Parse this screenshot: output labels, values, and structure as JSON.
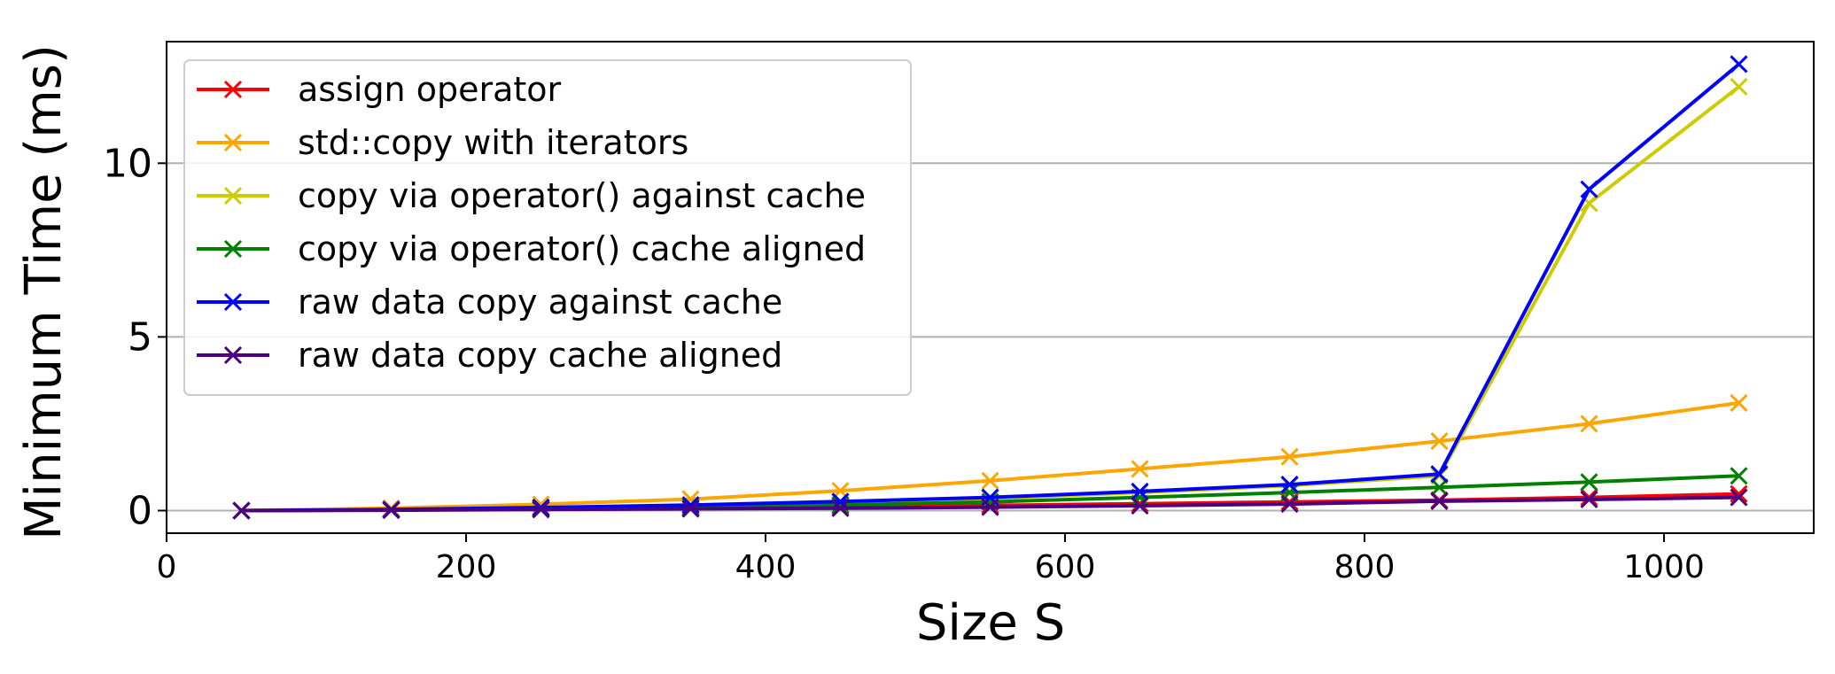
{
  "chart_data": {
    "type": "line",
    "title": "",
    "xlabel": "Size S",
    "ylabel": "Minimum Time (ms)",
    "xlim": [
      0,
      1100
    ],
    "ylim": [
      -0.65,
      13.5
    ],
    "xticks": [
      0,
      200,
      400,
      600,
      800,
      1000
    ],
    "yticks": [
      0,
      5,
      10
    ],
    "grid": "horizontal",
    "legend_position": "top-left",
    "marker": "x",
    "x": [
      50,
      150,
      250,
      350,
      450,
      550,
      650,
      750,
      850,
      950,
      1050
    ],
    "series": [
      {
        "name": "assign operator",
        "color": "#ff0000",
        "values": [
          0.0,
          0.02,
          0.05,
          0.08,
          0.12,
          0.15,
          0.2,
          0.25,
          0.3,
          0.38,
          0.48
        ]
      },
      {
        "name": "std::copy with iterators",
        "color": "#ffa500",
        "values": [
          0.0,
          0.07,
          0.18,
          0.33,
          0.57,
          0.86,
          1.2,
          1.55,
          2.0,
          2.5,
          3.1
        ]
      },
      {
        "name": "copy via operator() against cache",
        "color": "#cccc00",
        "values": [
          0.0,
          0.03,
          0.08,
          0.15,
          0.25,
          0.35,
          0.52,
          0.72,
          1.0,
          8.85,
          12.2
        ]
      },
      {
        "name": "copy via operator() cache aligned",
        "color": "#008000",
        "values": [
          0.0,
          0.02,
          0.06,
          0.1,
          0.16,
          0.25,
          0.38,
          0.52,
          0.67,
          0.82,
          1.0
        ]
      },
      {
        "name": "raw data copy against cache",
        "color": "#0000ff",
        "values": [
          0.0,
          0.03,
          0.09,
          0.16,
          0.26,
          0.38,
          0.55,
          0.75,
          1.05,
          9.25,
          12.85
        ]
      },
      {
        "name": "raw data copy cache aligned",
        "color": "#4b0082",
        "values": [
          0.0,
          0.01,
          0.03,
          0.05,
          0.07,
          0.1,
          0.14,
          0.19,
          0.27,
          0.32,
          0.38
        ]
      }
    ]
  }
}
